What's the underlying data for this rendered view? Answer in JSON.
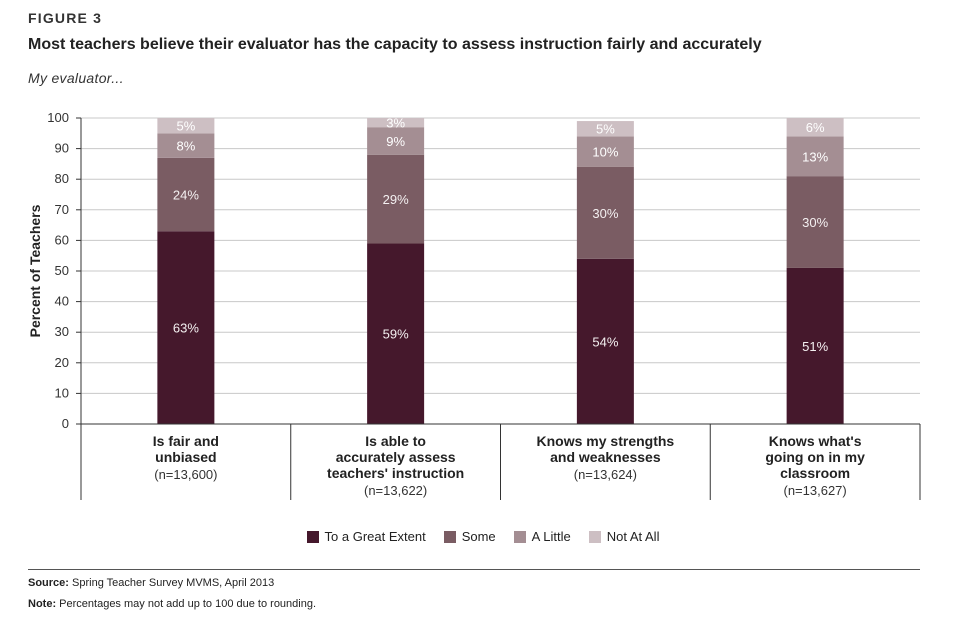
{
  "figure_label": "FIGURE 3",
  "title": "Most teachers believe their evaluator has the capacity to assess instruction fairly and accurately",
  "subtitle": "My evaluator...",
  "source": {
    "label": "Source:",
    "text": "Spring Teacher Survey MVMS, April 2013"
  },
  "note": {
    "label": "Note:",
    "text": "Percentages may not add up to 100 due to rounding."
  },
  "chart_data": {
    "type": "bar",
    "stacked": true,
    "ylabel": "Percent of Teachers",
    "ylim": [
      0,
      100
    ],
    "yticks": [
      0,
      10,
      20,
      30,
      40,
      50,
      60,
      70,
      80,
      90,
      100
    ],
    "grid": true,
    "legend_position": "bottom",
    "categories": [
      {
        "lines": [
          "Is fair and",
          "unbiased"
        ],
        "n": "(n=13,600)"
      },
      {
        "lines": [
          "Is able to",
          "accurately assess",
          "teachers' instruction"
        ],
        "n": "(n=13,622)"
      },
      {
        "lines": [
          "Knows my strengths",
          "and weaknesses"
        ],
        "n": "(n=13,624)"
      },
      {
        "lines": [
          "Knows what's",
          "going on in my",
          "classroom"
        ],
        "n": "(n=13,627)"
      }
    ],
    "series": [
      {
        "name": "To a Great Extent",
        "color": "#45182c",
        "values": [
          63,
          59,
          54,
          51
        ],
        "labels": [
          "63%",
          "59%",
          "54%",
          "51%"
        ]
      },
      {
        "name": "Some",
        "color": "#7a5c63",
        "values": [
          24,
          29,
          30,
          30
        ],
        "labels": [
          "24%",
          "29%",
          "30%",
          "30%"
        ]
      },
      {
        "name": "A Little",
        "color": "#a48e93",
        "values": [
          8,
          9,
          10,
          13
        ],
        "labels": [
          "8%",
          "9%",
          "10%",
          "13%"
        ]
      },
      {
        "name": "Not At All",
        "color": "#cdbfc3",
        "values": [
          5,
          3,
          5,
          6
        ],
        "labels": [
          "5%",
          "3%",
          "5%",
          "6%"
        ]
      }
    ]
  }
}
